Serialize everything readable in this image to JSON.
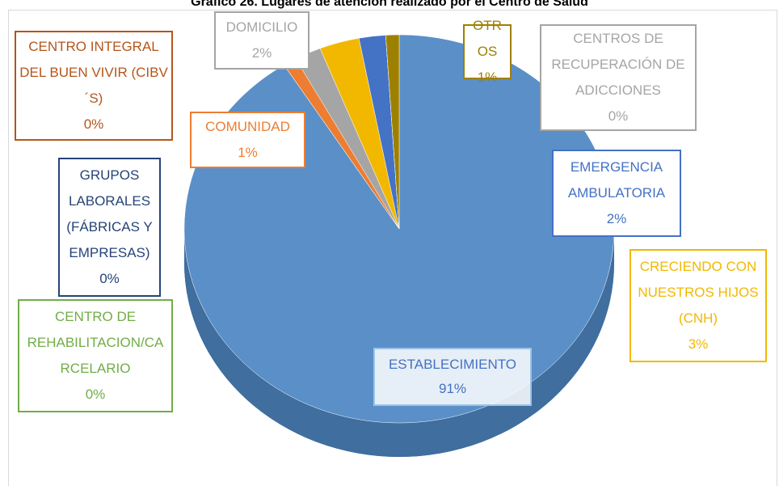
{
  "chart_data": {
    "type": "pie",
    "title": "Gráfico 26. Lugares de atención realizado por el Centro de Salud",
    "categories": [
      "ESTABLECIMIENTO",
      "GRUPOS LABORALES (FÁBRICAS Y EMPRESAS)",
      "CENTRO DE REHABILITACION/CARCELARIO",
      "CENTRO INTEGRAL DEL BUEN VIVIR (CIBV´S)",
      "COMUNIDAD",
      "DOMICILIO",
      "CRECIENDO CON NUESTROS HIJOS (CNH)",
      "EMERGENCIA AMBULATORIA",
      "CENTROS DE RECUPERACIÓN DE ADICCIONES",
      "OTROS"
    ],
    "values": [
      91,
      0,
      0,
      0,
      1,
      2,
      3,
      2,
      0,
      1
    ],
    "value_labels": [
      "91%",
      "0%",
      "0%",
      "0%",
      "1%",
      "2%",
      "3%",
      "2%",
      "0%",
      "1%"
    ],
    "colors": [
      "#5b8fc7",
      "#264478",
      "#70ad47",
      "#b4561b",
      "#ed7d31",
      "#a5a5a5",
      "#f2b800",
      "#4472c4",
      "#a5a5a5",
      "#9e8000"
    ]
  }
}
